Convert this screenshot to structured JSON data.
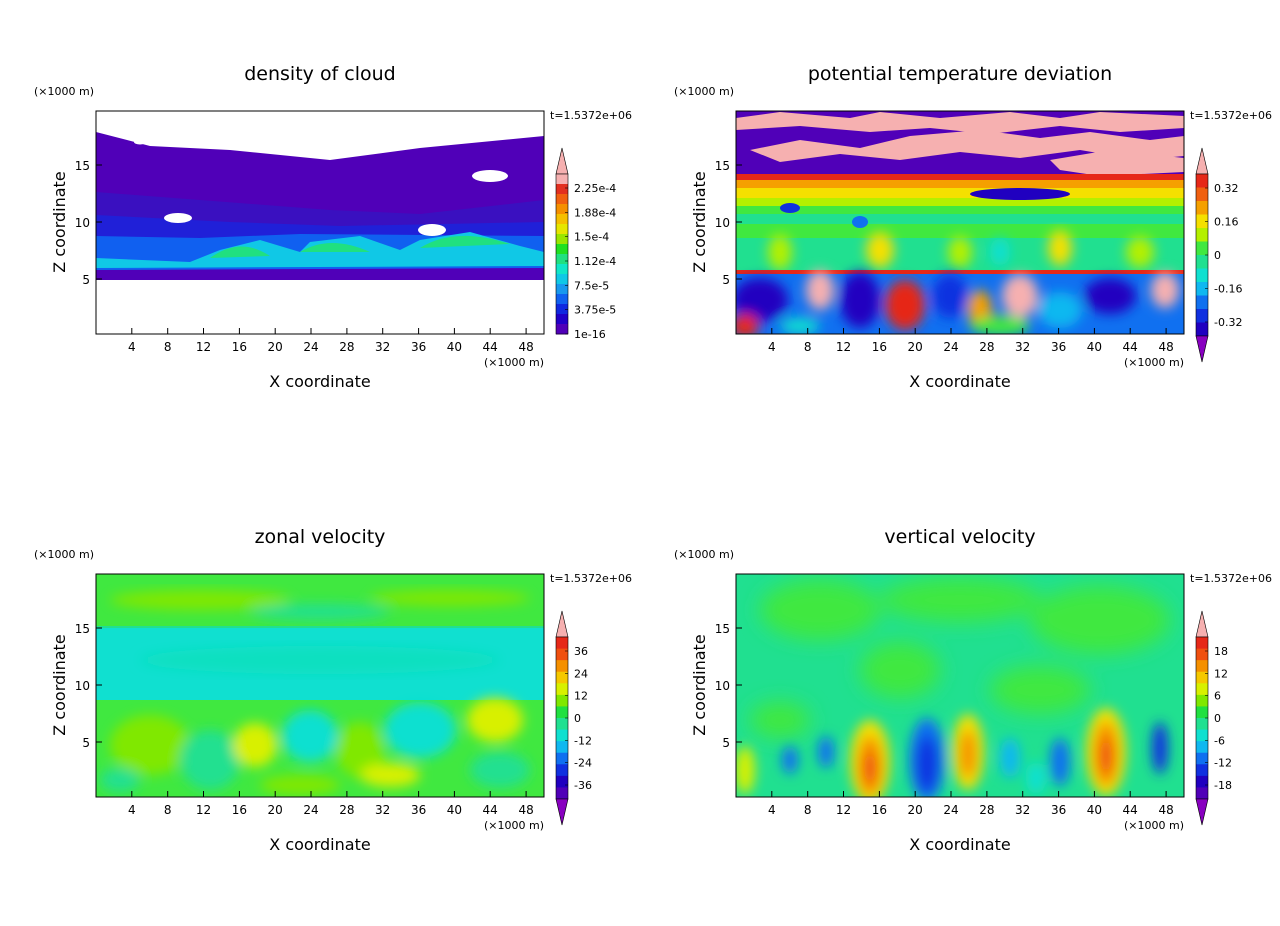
{
  "panels": [
    {
      "id": "cloud",
      "title": "density of cloud",
      "time": "t=1.5372e+06",
      "xlabel": "X coordinate",
      "ylabel": "Z coordinate",
      "xunit": "(×1000 m)",
      "yunit": "(×1000 m)",
      "xticks": [
        "4",
        "8",
        "12",
        "16",
        "20",
        "24",
        "28",
        "32",
        "36",
        "40",
        "44",
        "48"
      ],
      "yticks": [
        "5",
        "10",
        "15"
      ],
      "colorbar_labels": [
        "2.25e-4",
        "1.88e-4",
        "1.5e-4",
        "1.12e-4",
        "7.5e-5",
        "3.75e-5",
        "1e-16"
      ],
      "colorbar_arrows": "top",
      "colorbar_colors": [
        "#f6b0b0",
        "#e23020",
        "#f06010",
        "#f59000",
        "#f5c000",
        "#e6e600",
        "#9ae600",
        "#20e020",
        "#20e080",
        "#10e6c8",
        "#10c8e6",
        "#1898ee",
        "#1060f0",
        "#1028e0",
        "#2000c8",
        "#5000b8"
      ]
    },
    {
      "id": "theta",
      "title": "potential temperature deviation",
      "time": "t=1.5372e+06",
      "xlabel": "X coordinate",
      "ylabel": "Z coordinate",
      "xunit": "(×1000 m)",
      "yunit": "(×1000 m)",
      "xticks": [
        "4",
        "8",
        "12",
        "16",
        "20",
        "24",
        "28",
        "32",
        "36",
        "40",
        "44",
        "48"
      ],
      "yticks": [
        "5",
        "10",
        "15"
      ],
      "colorbar_labels": [
        "0.32",
        "0.16",
        "0",
        "-0.16",
        "-0.32"
      ],
      "colorbar_arrows": "both",
      "colorbar_colors": [
        "#e62818",
        "#f06010",
        "#f5a000",
        "#f5e000",
        "#b4f000",
        "#40e840",
        "#20e090",
        "#10e0d0",
        "#10b8f0",
        "#1070f0",
        "#1030e0",
        "#2000c0"
      ]
    },
    {
      "id": "zonal",
      "title": "zonal velocity",
      "time": "t=1.5372e+06",
      "xlabel": "X coordinate",
      "ylabel": "Z coordinate",
      "xunit": "(×1000 m)",
      "yunit": "(×1000 m)",
      "xticks": [
        "4",
        "8",
        "12",
        "16",
        "20",
        "24",
        "28",
        "32",
        "36",
        "40",
        "44",
        "48"
      ],
      "yticks": [
        "5",
        "10",
        "15"
      ],
      "colorbar_labels": [
        "36",
        "24",
        "12",
        "0",
        "-12",
        "-24",
        "-36"
      ],
      "colorbar_arrows": "both",
      "colorbar_colors": [
        "#e62818",
        "#f05010",
        "#f59000",
        "#f5c800",
        "#d8f000",
        "#80e800",
        "#20e040",
        "#20e090",
        "#10e0d0",
        "#10b8f0",
        "#1070f0",
        "#1030e0",
        "#2000c0",
        "#5000b8"
      ]
    },
    {
      "id": "vertical",
      "title": "vertical velocity",
      "time": "t=1.5372e+06",
      "xlabel": "X coordinate",
      "ylabel": "Z coordinate",
      "xunit": "(×1000 m)",
      "yunit": "(×1000 m)",
      "xticks": [
        "4",
        "8",
        "12",
        "16",
        "20",
        "24",
        "28",
        "32",
        "36",
        "40",
        "44",
        "48"
      ],
      "yticks": [
        "5",
        "10",
        "15"
      ],
      "colorbar_labels": [
        "18",
        "12",
        "6",
        "0",
        "-6",
        "-12",
        "-18"
      ],
      "colorbar_arrows": "both",
      "colorbar_colors": [
        "#e62818",
        "#f05010",
        "#f59000",
        "#f5c800",
        "#d8f000",
        "#80e800",
        "#20e040",
        "#20e090",
        "#10e0d0",
        "#10b8f0",
        "#1070f0",
        "#1030e0",
        "#2000c0",
        "#5000b8"
      ]
    }
  ],
  "chart_data": [
    {
      "type": "heatmap",
      "title": "density of cloud",
      "xlabel": "X coordinate",
      "ylabel": "Z coordinate",
      "xlim": [
        0,
        50
      ],
      "ylim": [
        0,
        19.5
      ],
      "levels": [
        1e-16,
        3.75e-05,
        7.5e-05,
        0.000112,
        0.00015,
        0.000188,
        0.000225
      ],
      "regions": [
        {
          "desc_value": 0,
          "z_range": [
            0,
            5.3
          ]
        },
        {
          "desc_value": 1e-16,
          "z_range": [
            10,
            17.5
          ]
        },
        {
          "desc_value": 5e-05,
          "z_range": [
            5.5,
            10
          ]
        },
        {
          "desc_value": 0.000112,
          "x_centers": [
            22,
            30,
            42
          ],
          "z": 7.5
        }
      ]
    },
    {
      "type": "heatmap",
      "title": "potential temperature deviation",
      "xlabel": "X coordinate",
      "ylabel": "Z coordinate",
      "xlim": [
        0,
        50
      ],
      "ylim": [
        0,
        19.5
      ],
      "levels": [
        -0.32,
        -0.16,
        0,
        0.16,
        0.32
      ]
    },
    {
      "type": "heatmap",
      "title": "zonal velocity",
      "xlabel": "X coordinate",
      "ylabel": "Z coordinate",
      "xlim": [
        0,
        50
      ],
      "ylim": [
        0,
        19.5
      ],
      "levels": [
        -36,
        -24,
        -12,
        0,
        12,
        24,
        36
      ]
    },
    {
      "type": "heatmap",
      "title": "vertical velocity",
      "xlabel": "X coordinate",
      "ylabel": "Z coordinate",
      "xlim": [
        0,
        50
      ],
      "ylim": [
        0,
        19.5
      ],
      "levels": [
        -18,
        -12,
        -6,
        0,
        6,
        12,
        18
      ],
      "features": [
        {
          "x": 15,
          "z": 3,
          "value": 12
        },
        {
          "x": 21.5,
          "z": 3,
          "value": -12
        },
        {
          "x": 26,
          "z": 3.5,
          "value": 9
        },
        {
          "x": 41.5,
          "z": 3.5,
          "value": 14
        },
        {
          "x": 47,
          "z": 3,
          "value": -10
        }
      ]
    }
  ]
}
